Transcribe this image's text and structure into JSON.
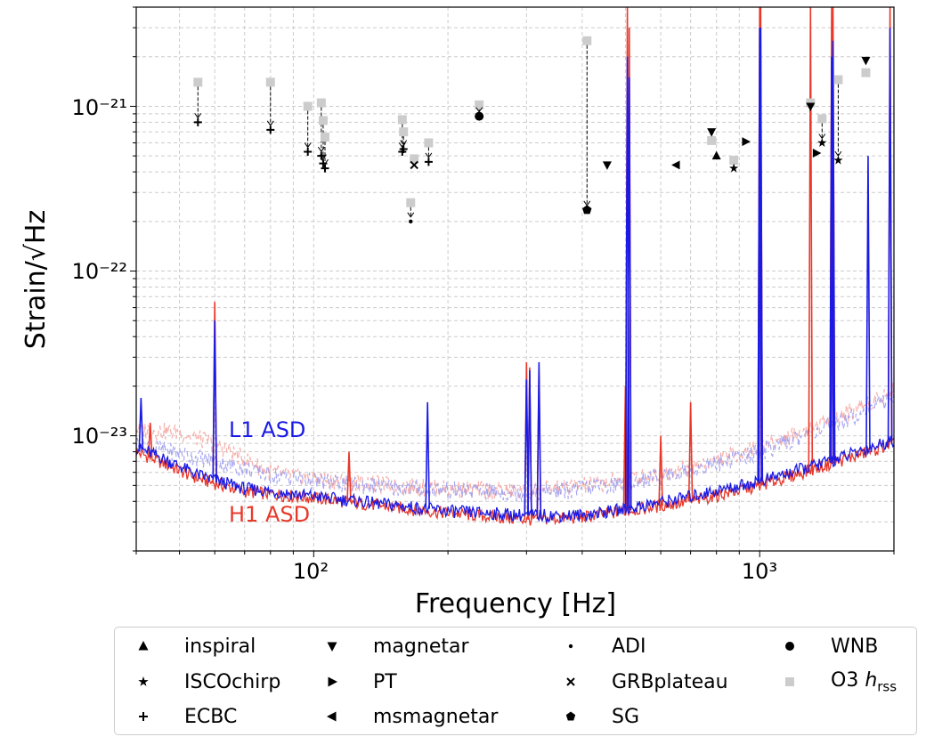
{
  "chart_data": {
    "type": "line",
    "xlabel": "Frequency [Hz]",
    "ylabel": "Strain/√Hz",
    "x_scale": "log",
    "y_scale": "log",
    "xlim": [
      40,
      2000
    ],
    "ylim": [
      2e-24,
      4e-21
    ],
    "x_tick_labels": [
      "10²",
      "10³"
    ],
    "y_tick_labels": [
      "10⁻²³",
      "10⁻²²",
      "10⁻²¹"
    ],
    "grid": true,
    "series": [
      {
        "name": "H1 ASD",
        "color": "#e8382a",
        "baseline": [
          [
            40,
            8e-24
          ],
          [
            45,
            7e-24
          ],
          [
            55,
            5.5e-24
          ],
          [
            70,
            4.6e-24
          ],
          [
            100,
            4.2e-24
          ],
          [
            150,
            3.7e-24
          ],
          [
            200,
            3.4e-24
          ],
          [
            300,
            3.1e-24
          ],
          [
            400,
            3.2e-24
          ],
          [
            500,
            3.5e-24
          ],
          [
            700,
            4e-24
          ],
          [
            1000,
            5e-24
          ],
          [
            1500,
            7e-24
          ],
          [
            2000,
            9e-24
          ]
        ],
        "lines": [
          [
            43,
            1.2e-23
          ],
          [
            60,
            6.5e-23
          ],
          [
            120,
            8e-24
          ],
          [
            300,
            2.8e-23
          ],
          [
            305,
            2.6e-23
          ],
          [
            320,
            2.4e-23
          ],
          [
            500,
            2e-23
          ],
          [
            505,
            4e-21
          ],
          [
            510,
            3e-21
          ],
          [
            600,
            1e-23
          ],
          [
            700,
            1.6e-23
          ],
          [
            1000,
            4e-21
          ],
          [
            1005,
            4e-21
          ],
          [
            1300,
            4e-21
          ],
          [
            1450,
            4e-21
          ],
          [
            1460,
            4e-21
          ],
          [
            1960,
            4e-21
          ]
        ]
      },
      {
        "name": "L1 ASD",
        "color": "#1a1ae6",
        "baseline": [
          [
            40,
            8.5e-24
          ],
          [
            45,
            7.5e-24
          ],
          [
            55,
            5.8e-24
          ],
          [
            70,
            4.8e-24
          ],
          [
            100,
            4.3e-24
          ],
          [
            150,
            3.8e-24
          ],
          [
            200,
            3.5e-24
          ],
          [
            300,
            3.3e-24
          ],
          [
            400,
            3.3e-24
          ],
          [
            500,
            3.6e-24
          ],
          [
            700,
            4.3e-24
          ],
          [
            1000,
            5.3e-24
          ],
          [
            1500,
            7.3e-24
          ],
          [
            2000,
            9.5e-24
          ]
        ],
        "lines": [
          [
            41,
            1.7e-23
          ],
          [
            60,
            5e-23
          ],
          [
            180,
            1.6e-23
          ],
          [
            300,
            2.2e-23
          ],
          [
            305,
            2.5e-23
          ],
          [
            320,
            2.8e-23
          ],
          [
            505,
            2e-21
          ],
          [
            510,
            1.5e-21
          ],
          [
            1000,
            3e-21
          ],
          [
            1005,
            3e-21
          ],
          [
            1450,
            2e-21
          ],
          [
            1460,
            2.5e-21
          ],
          [
            1750,
            5e-22
          ],
          [
            1960,
            3e-21
          ]
        ]
      },
      {
        "name": "H1 ASD (faint)",
        "color": "#f4a09a",
        "dashed": true,
        "baseline": [
          [
            40,
            1.1e-23
          ],
          [
            50,
            1.05e-23
          ],
          [
            60,
            9e-24
          ],
          [
            80,
            6e-24
          ],
          [
            100,
            5.5e-24
          ],
          [
            150,
            5e-24
          ],
          [
            200,
            4.8e-24
          ],
          [
            300,
            4.6e-24
          ],
          [
            400,
            5e-24
          ],
          [
            500,
            5.4e-24
          ],
          [
            700,
            6.5e-24
          ],
          [
            1000,
            8.5e-24
          ],
          [
            1500,
            1.3e-23
          ],
          [
            2000,
            1.9e-23
          ]
        ]
      },
      {
        "name": "L1 ASD (faint)",
        "color": "#9a9af0",
        "dashed": true,
        "baseline": [
          [
            40,
            9e-24
          ],
          [
            60,
            7e-24
          ],
          [
            80,
            5.8e-24
          ],
          [
            100,
            5.3e-24
          ],
          [
            150,
            4.9e-24
          ],
          [
            200,
            4.7e-24
          ],
          [
            300,
            4.5e-24
          ],
          [
            400,
            4.8e-24
          ],
          [
            500,
            5.2e-24
          ],
          [
            700,
            6.2e-24
          ],
          [
            1000,
            8e-24
          ],
          [
            1500,
            1.2e-23
          ],
          [
            2000,
            1.75e-23
          ]
        ]
      }
    ],
    "annotations": [
      {
        "text": "L1 ASD",
        "color": "#1a1ae6"
      },
      {
        "text": "H1 ASD",
        "color": "#e8382a"
      }
    ],
    "points": [
      {
        "f": 55,
        "o3": 1.4e-21,
        "v": 8e-22,
        "m": "ecbc"
      },
      {
        "f": 80,
        "o3": 1.4e-21,
        "v": 7.2e-22,
        "m": "ecbc"
      },
      {
        "f": 97,
        "o3": 1e-21,
        "v": 5.3e-22,
        "m": "ecbc"
      },
      {
        "f": 104,
        "o3": 1.05e-21,
        "v": 5e-22,
        "m": "ecbc"
      },
      {
        "f": 105,
        "o3": 8.2e-22,
        "v": 4.5e-22,
        "m": "ecbc"
      },
      {
        "f": 106,
        "o3": 6.5e-22,
        "v": 4.2e-22,
        "m": "ecbc"
      },
      {
        "f": 158,
        "o3": 8.3e-22,
        "v": 5.3e-22,
        "m": "ecbc"
      },
      {
        "f": 159,
        "o3": 7e-22,
        "v": 5.5e-22,
        "m": "ecbc"
      },
      {
        "f": 165,
        "o3": 2.6e-22,
        "v": 2e-22,
        "m": "adi"
      },
      {
        "f": 168,
        "o3": 4.8e-22,
        "v": 4.4e-22,
        "m": "grb"
      },
      {
        "f": 181,
        "o3": 6e-22,
        "v": 4.6e-22,
        "m": "ecbc"
      },
      {
        "f": 235,
        "o3": 1.02e-21,
        "v": 8.7e-22,
        "m": "wnb"
      },
      {
        "f": 410,
        "o3": 2.5e-21,
        "v": 2.35e-22,
        "m": "sg"
      },
      {
        "f": 455,
        "o3": null,
        "v": 4.4e-22,
        "m": "magnetar"
      },
      {
        "f": 650,
        "o3": null,
        "v": 4.4e-22,
        "m": "msmagnetar"
      },
      {
        "f": 780,
        "o3": 6.2e-22,
        "v": 7e-22,
        "m": "magnetar"
      },
      {
        "f": 800,
        "o3": null,
        "v": 5e-22,
        "m": "inspiral"
      },
      {
        "f": 875,
        "o3": 4.7e-22,
        "v": 4.2e-22,
        "m": "iscochirp"
      },
      {
        "f": 930,
        "o3": null,
        "v": 6.1e-22,
        "m": "pt"
      },
      {
        "f": 1300,
        "o3": 1.05e-21,
        "v": 1e-21,
        "m": "magnetar"
      },
      {
        "f": 1340,
        "o3": null,
        "v": 5.2e-22,
        "m": "pt"
      },
      {
        "f": 1380,
        "o3": 8.4e-22,
        "v": 6e-22,
        "m": "iscochirp"
      },
      {
        "f": 1500,
        "o3": 1.45e-21,
        "v": 4.7e-22,
        "m": "iscochirp"
      },
      {
        "f": 1730,
        "o3": 1.6e-21,
        "v": 1.9e-21,
        "m": "magnetar"
      }
    ]
  },
  "legend": {
    "entries": [
      {
        "label": "inspiral",
        "marker": "triangle-up"
      },
      {
        "label": "ISCOchirp",
        "marker": "star"
      },
      {
        "label": "ECBC",
        "marker": "plus"
      },
      {
        "label": "magnetar",
        "marker": "triangle-down"
      },
      {
        "label": "PT",
        "marker": "triangle-right"
      },
      {
        "label": "msmagnetar",
        "marker": "triangle-left"
      },
      {
        "label": "ADI",
        "marker": "point"
      },
      {
        "label": "GRBplateau",
        "marker": "x"
      },
      {
        "label": "SG",
        "marker": "pentagon"
      },
      {
        "label": "WNB",
        "marker": "circle"
      },
      {
        "label_main": "O3 ",
        "label_italic": "h",
        "label_sub": "rss",
        "marker": "square"
      }
    ]
  }
}
